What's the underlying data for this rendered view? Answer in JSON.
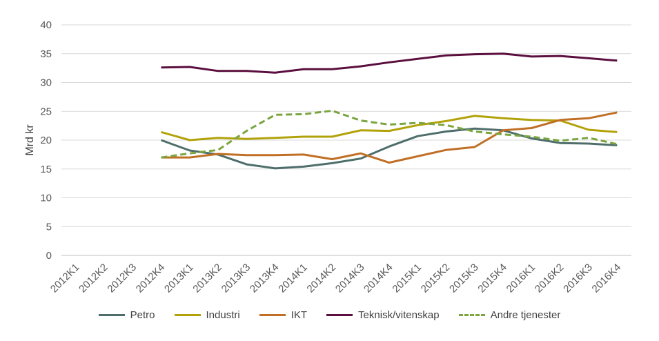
{
  "chart_data": {
    "type": "line",
    "ylabel": "Mrd kr",
    "ylim": [
      0,
      40
    ],
    "yticks": [
      0,
      5,
      10,
      15,
      20,
      25,
      30,
      35,
      40
    ],
    "grid": true,
    "legend_position": "bottom",
    "categories": [
      "2012K1",
      "2012K2",
      "2012K3",
      "2012K4",
      "2013K1",
      "2013K2",
      "2013K3",
      "2013K4",
      "2014K1",
      "2014K2",
      "2014K3",
      "2014K4",
      "2015K1",
      "2015K2",
      "2015K3",
      "2015K4",
      "2016K1",
      "2016K2",
      "2016K3",
      "2016K4"
    ],
    "series": [
      {
        "name": "Petro",
        "color": "#4e6e6b",
        "dash": "solid",
        "values": [
          null,
          null,
          null,
          20.0,
          18.2,
          17.5,
          15.8,
          15.1,
          15.4,
          16.0,
          16.8,
          18.9,
          20.7,
          21.5,
          22.0,
          21.7,
          20.3,
          19.5,
          19.4,
          19.1
        ]
      },
      {
        "name": "Industri",
        "color": "#b2a20a",
        "dash": "solid",
        "values": [
          null,
          null,
          null,
          21.4,
          20.0,
          20.4,
          20.2,
          20.4,
          20.6,
          20.6,
          21.7,
          21.6,
          22.6,
          23.3,
          24.2,
          23.8,
          23.5,
          23.4,
          21.8,
          21.4
        ]
      },
      {
        "name": "IKT",
        "color": "#c06f25",
        "dash": "solid",
        "values": [
          null,
          null,
          null,
          17.0,
          17.0,
          17.6,
          17.4,
          17.4,
          17.5,
          16.7,
          17.7,
          16.1,
          17.2,
          18.3,
          18.8,
          21.7,
          22.1,
          23.5,
          23.8,
          24.8
        ]
      },
      {
        "name": "Teknisk/vitenskap",
        "color": "#5b0f3e",
        "dash": "solid",
        "values": [
          null,
          null,
          null,
          32.6,
          32.7,
          32.0,
          32.0,
          31.7,
          32.3,
          32.3,
          32.8,
          33.5,
          34.1,
          34.7,
          34.9,
          35.0,
          34.5,
          34.6,
          34.2,
          33.8
        ]
      },
      {
        "name": "Andre tjenester",
        "color": "#7aa53f",
        "dash": "dashed",
        "values": [
          null,
          null,
          null,
          17.0,
          17.7,
          18.3,
          21.6,
          24.4,
          24.5,
          25.1,
          23.4,
          22.7,
          23.0,
          22.6,
          21.5,
          21.0,
          20.6,
          19.9,
          20.4,
          19.3
        ]
      }
    ]
  }
}
